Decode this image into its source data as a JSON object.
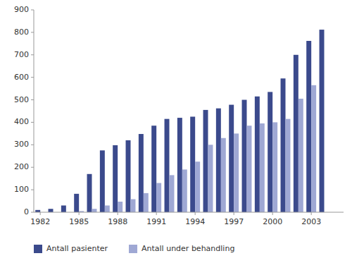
{
  "chart_data": {
    "type": "bar",
    "categories": [
      "1982",
      null,
      null,
      "1985",
      null,
      null,
      "1988",
      null,
      null,
      "1991",
      null,
      null,
      "1994",
      null,
      null,
      "1997",
      null,
      null,
      "2000",
      null,
      null,
      "2003",
      null,
      null
    ],
    "series": [
      {
        "name": "Antall pasienter",
        "color": "#3b4a8c",
        "values": [
          10,
          15,
          30,
          82,
          170,
          275,
          298,
          320,
          348,
          385,
          415,
          420,
          425,
          455,
          462,
          478,
          500,
          515,
          535,
          595,
          700,
          762,
          812,
          0
        ]
      },
      {
        "name": "Antall under behandling",
        "color": "#9fa8d4",
        "values": [
          0,
          0,
          0,
          5,
          15,
          30,
          47,
          58,
          85,
          130,
          165,
          190,
          225,
          300,
          330,
          350,
          385,
          395,
          400,
          415,
          505,
          565,
          0,
          0
        ]
      }
    ],
    "ylim": [
      0,
      900
    ],
    "yticks": [
      0,
      100,
      200,
      300,
      400,
      500,
      600,
      700,
      800,
      900
    ],
    "grid": false,
    "legend": "bottom"
  }
}
